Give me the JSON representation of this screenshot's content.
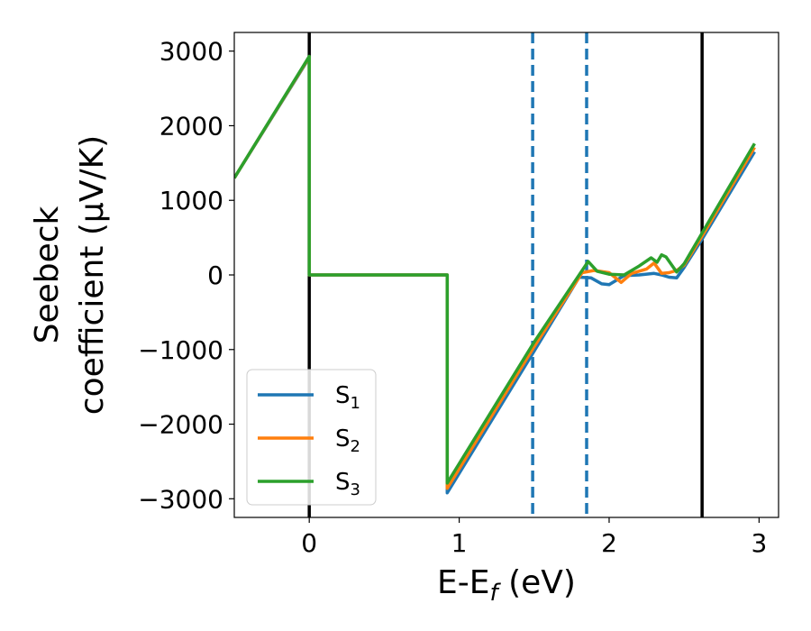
{
  "chart_data": {
    "type": "line",
    "xlabel_main": "E-E",
    "xlabel_sub": "f",
    "xlabel_unit": " (eV)",
    "ylabel_line1": "Seebeck",
    "ylabel_line2": "coefficient  (μV/K)",
    "xlim": [
      -0.5,
      3.13
    ],
    "ylim": [
      -3250,
      3250
    ],
    "xticks": [
      0,
      1,
      2,
      3
    ],
    "xtick_labels": [
      "0",
      "1",
      "2",
      "3"
    ],
    "yticks": [
      3000,
      2000,
      1000,
      0,
      -1000,
      -2000,
      -3000
    ],
    "ytick_labels": [
      "3000",
      "2000",
      "1000",
      "0",
      "−1000",
      "−2000",
      "−3000"
    ],
    "legend_position": "lower-left",
    "vlines": [
      {
        "x": 0.0,
        "style": "solid",
        "color": "#000000"
      },
      {
        "x": 2.62,
        "style": "solid",
        "color": "#000000"
      },
      {
        "x": 1.49,
        "style": "dashed",
        "color": "#1f77b4"
      },
      {
        "x": 1.85,
        "style": "dashed",
        "color": "#1f77b4"
      }
    ],
    "series": [
      {
        "name": "S",
        "sub": "1",
        "color": "#1f77b4",
        "x": [
          -0.5,
          0.0,
          0.0,
          0.92,
          0.92,
          1.5,
          1.8,
          1.88,
          1.95,
          2.0,
          2.1,
          2.2,
          2.3,
          2.35,
          2.4,
          2.45,
          2.5,
          2.62,
          2.97
        ],
        "y": [
          1300,
          2910,
          0,
          0,
          -2920,
          -1020,
          -30,
          -40,
          -120,
          -130,
          -10,
          0,
          20,
          0,
          -30,
          -40,
          100,
          480,
          1650
        ]
      },
      {
        "name": "S",
        "sub": "2",
        "color": "#ff7f0e",
        "x": [
          -0.5,
          0.0,
          0.0,
          0.92,
          0.92,
          1.5,
          1.82,
          1.9,
          2.0,
          2.08,
          2.15,
          2.25,
          2.3,
          2.35,
          2.4,
          2.45,
          2.5,
          2.62,
          2.97
        ],
        "y": [
          1300,
          2920,
          0,
          0,
          -2860,
          -960,
          30,
          60,
          30,
          -100,
          20,
          80,
          160,
          20,
          30,
          60,
          130,
          520,
          1710
        ]
      },
      {
        "name": "S",
        "sub": "3",
        "color": "#2ca02c",
        "x": [
          -0.5,
          0.0,
          0.0,
          0.92,
          0.92,
          1.5,
          1.86,
          1.92,
          2.0,
          2.1,
          2.2,
          2.28,
          2.32,
          2.35,
          2.38,
          2.45,
          2.5,
          2.62,
          2.97
        ],
        "y": [
          1300,
          2930,
          0,
          0,
          -2790,
          -900,
          180,
          50,
          10,
          0,
          120,
          230,
          170,
          270,
          240,
          40,
          150,
          560,
          1760
        ]
      }
    ]
  }
}
